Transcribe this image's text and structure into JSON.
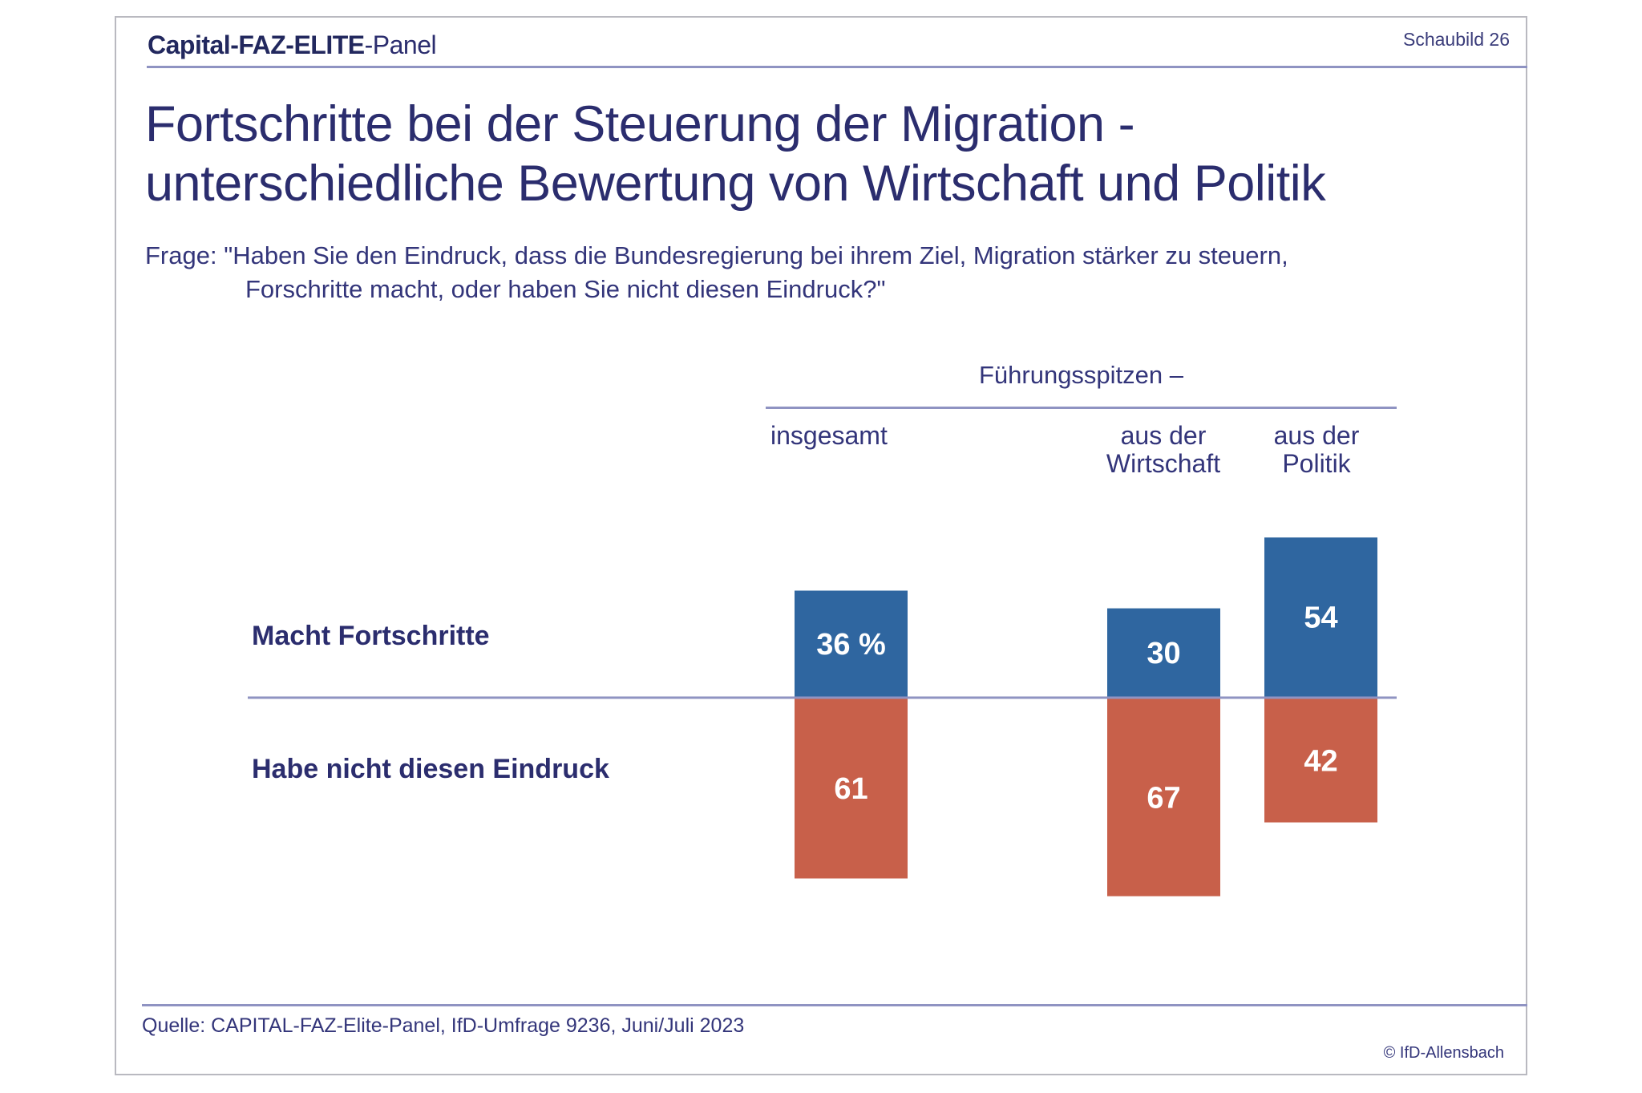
{
  "header": {
    "brand_parts": [
      "Capital-",
      "FAZ-ELITE",
      "-Panel"
    ],
    "figure_label": "Schaubild  26"
  },
  "title_lines": [
    "Fortschritte bei der Steuerung der Migration -",
    "unterschiedliche Bewertung von Wirtschaft und Politik"
  ],
  "question": {
    "line1": "Frage: \"Haben Sie den Eindruck, dass die Bundesregierung bei ihrem Ziel, Migration stärker zu steuern,",
    "line2": "Forschritte macht, oder haben Sie nicht diesen Eindruck?\""
  },
  "colors": {
    "positive": "#2f66a0",
    "negative": "#c8604a",
    "text": "#2b2d6e",
    "rule": "#8f93c2"
  },
  "chart_data": {
    "type": "bar",
    "title": "Fortschritte bei der Steuerung der Migration - unterschiedliche Bewertung von Wirtschaft und Politik",
    "group_header": "Führungsspitzen –",
    "categories": [
      "insgesamt",
      "aus der Wirtschaft",
      "aus der Politik"
    ],
    "category_label_lines": [
      [
        "insgesamt"
      ],
      [
        "aus der",
        "Wirtschaft"
      ],
      [
        "aus der",
        "Politik"
      ]
    ],
    "series": [
      {
        "name": "Macht Fortschritte",
        "direction": "up",
        "values": [
          36,
          30,
          54
        ],
        "labels": [
          "36 %",
          "30",
          "54"
        ]
      },
      {
        "name": "Habe nicht diesen Eindruck",
        "direction": "down",
        "values": [
          61,
          67,
          42
        ],
        "labels": [
          "61",
          "67",
          "42"
        ]
      }
    ],
    "unit": "%",
    "xlabel": "",
    "ylabel": "",
    "grid": false
  },
  "footer": {
    "source": "Quelle: CAPITAL-FAZ-Elite-Panel, IfD-Umfrage 9236, Juni/Juli 2023",
    "copyright": "© IfD-Allensbach"
  }
}
